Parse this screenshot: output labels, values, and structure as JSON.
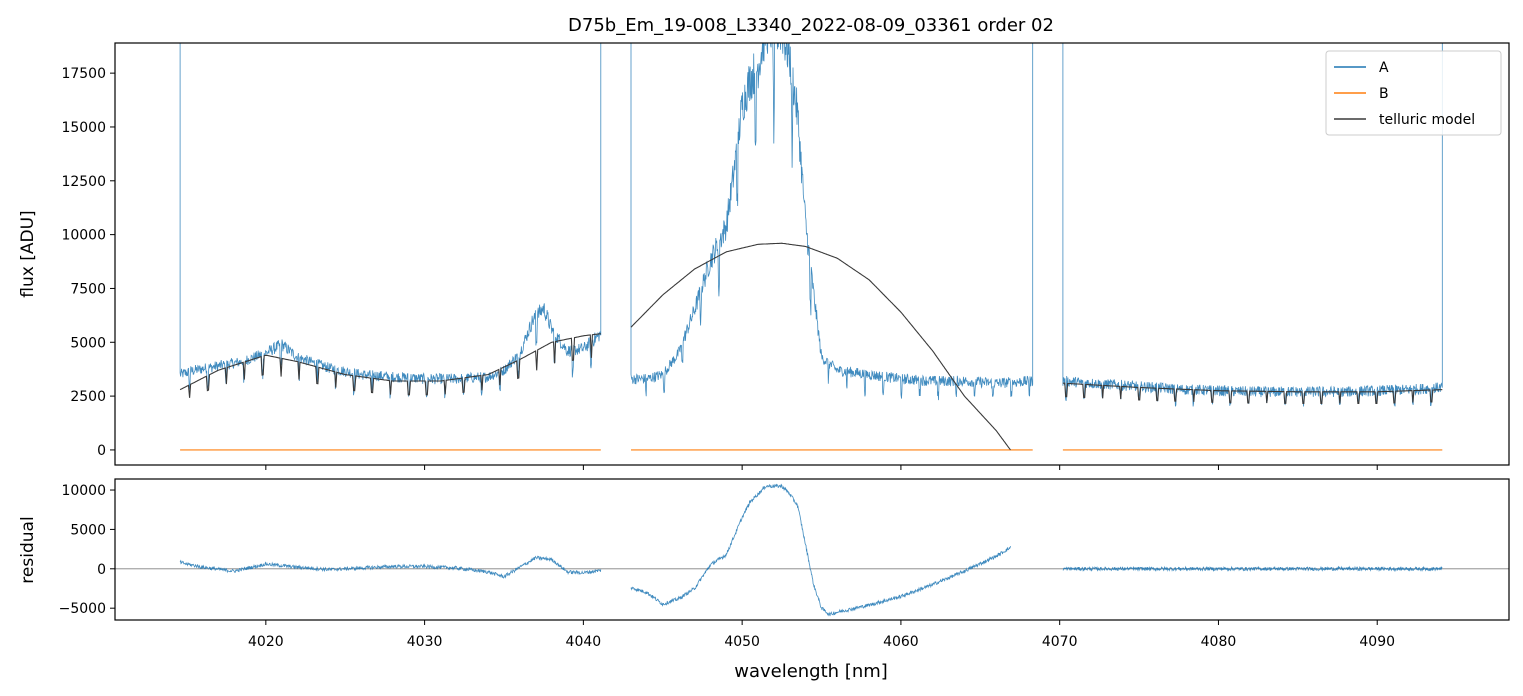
{
  "title": "D75b_Em_19-008_L3340_2022-08-09_03361  order 02",
  "colors": {
    "A": "#1f77b4",
    "B": "#ff7f0e",
    "model": "#3a3a3a",
    "zero_line": "#808080"
  },
  "chart_data": [
    {
      "panel": "flux",
      "type": "line",
      "ylabel": "flux [ADU]",
      "xlim": [
        4010.5,
        4098.3
      ],
      "ylim": [
        -700,
        18900
      ],
      "xticks": [
        4020,
        4030,
        4040,
        4050,
        4060,
        4070,
        4080,
        4090
      ],
      "xticklabels_shown": false,
      "yticks": [
        0,
        2500,
        5000,
        7500,
        10000,
        12500,
        15000,
        17500
      ],
      "ytick_labels": [
        "0",
        "2500",
        "5000",
        "7500",
        "10000",
        "12500",
        "15000",
        "17500"
      ],
      "legend": {
        "position": "top-right",
        "entries": [
          "A",
          "B",
          "telluric model"
        ]
      },
      "series": [
        {
          "name": "A",
          "segments": [
            {
              "x": [
                4014.6,
                4015.5,
                4017,
                4018.5,
                4020,
                4021,
                4022,
                4024,
                4026,
                4028,
                4030,
                4032,
                4034,
                4035,
                4036,
                4036.8,
                4037.5,
                4038,
                4039,
                4040,
                4041.1
              ],
              "y": [
                3500,
                3700,
                3900,
                4100,
                4500,
                4900,
                4300,
                3800,
                3500,
                3400,
                3300,
                3300,
                3400,
                3700,
                4500,
                6000,
                6600,
                5600,
                4600,
                4700,
                5400
              ]
            },
            {
              "x": [
                4043,
                4044,
                4045,
                4046,
                4047,
                4048,
                4048.5,
                4049,
                4049.5,
                4050,
                4050.5,
                4051,
                4051.5,
                4052,
                4052.5,
                4053,
                4053.5,
                4054,
                4054.5,
                4055,
                4056,
                4058,
                4060,
                4062,
                4064,
                4066,
                4068.3
              ],
              "y": [
                3300,
                3300,
                3500,
                4500,
                6500,
                8800,
                9600,
                10400,
                13000,
                16000,
                17200,
                17800,
                19500,
                19500,
                19500,
                18200,
                15500,
                10500,
                7300,
                4300,
                3700,
                3500,
                3300,
                3200,
                3200,
                3100,
                3200
              ]
            },
            {
              "x": [
                4070.2,
                4072,
                4074,
                4076,
                4078,
                4080,
                4082,
                4084,
                4086,
                4088,
                4090,
                4092,
                4094.1
              ],
              "y": [
                3200,
                3100,
                3000,
                2900,
                2800,
                2750,
                2700,
                2700,
                2700,
                2700,
                2750,
                2800,
                2900
              ]
            }
          ]
        },
        {
          "name": "B",
          "segments": [
            {
              "x": [
                4014.6,
                4041.1
              ],
              "y": [
                0,
                0
              ]
            },
            {
              "x": [
                4043,
                4068.3
              ],
              "y": [
                0,
                0
              ]
            },
            {
              "x": [
                4070.2,
                4094.1
              ],
              "y": [
                0,
                0
              ]
            }
          ]
        },
        {
          "name": "telluric model",
          "segments": [
            {
              "x": [
                4014.6,
                4017,
                4020,
                4022,
                4025,
                4028,
                4031,
                4034,
                4036,
                4038,
                4040,
                4041.1
              ],
              "y": [
                2800,
                3700,
                4400,
                4100,
                3500,
                3200,
                3200,
                3500,
                4200,
                5000,
                5300,
                5400
              ]
            },
            {
              "x": [
                4043,
                4045,
                4047,
                4049,
                4051,
                4052.5,
                4054,
                4056,
                4058,
                4060,
                4062,
                4064,
                4066,
                4066.9
              ],
              "y": [
                5700,
                7200,
                8400,
                9200,
                9550,
                9600,
                9450,
                8900,
                7900,
                6400,
                4600,
                2500,
                900,
                0
              ]
            },
            {
              "x": [
                4070.2,
                4075,
                4080,
                4085,
                4090,
                4094.1
              ],
              "y": [
                3100,
                2900,
                2750,
                2700,
                2700,
                2800
              ]
            }
          ]
        }
      ]
    },
    {
      "panel": "residual",
      "type": "line",
      "xlabel": "wavelength [nm]",
      "ylabel": "residual",
      "xlim": [
        4010.5,
        4098.3
      ],
      "ylim": [
        -6500,
        11400
      ],
      "xticks": [
        4020,
        4030,
        4040,
        4050,
        4060,
        4070,
        4080,
        4090
      ],
      "xtick_labels": [
        "4020",
        "4030",
        "4040",
        "4050",
        "4060",
        "4070",
        "4080",
        "4090"
      ],
      "yticks": [
        -5000,
        0,
        5000,
        10000
      ],
      "ytick_labels": [
        "−5000",
        "0",
        "5000",
        "10000"
      ],
      "hline": 0,
      "series": [
        {
          "name": "A",
          "segments": [
            {
              "x": [
                4014.6,
                4016,
                4018,
                4020,
                4022,
                4024,
                4026,
                4028,
                4030,
                4032,
                4034,
                4035,
                4036,
                4037,
                4038,
                4039,
                4040,
                4041.1
              ],
              "y": [
                800,
                200,
                -300,
                600,
                200,
                -100,
                100,
                300,
                300,
                100,
                -400,
                -1000,
                200,
                1400,
                1200,
                -400,
                -500,
                -200
              ]
            },
            {
              "x": [
                4043,
                4044,
                4045,
                4046,
                4047,
                4048,
                4049,
                4050,
                4050.5,
                4051,
                4051.5,
                4052,
                4052.5,
                4053,
                4053.5,
                4054,
                4054.5,
                4055,
                4055.5,
                4056,
                4058,
                4060,
                4062,
                4064,
                4066,
                4066.9
              ],
              "y": [
                -2400,
                -3000,
                -4500,
                -3800,
                -2500,
                500,
                1800,
                6500,
                8500,
                9500,
                10500,
                10500,
                10500,
                9500,
                8000,
                3000,
                -2000,
                -5000,
                -5800,
                -5500,
                -4600,
                -3500,
                -2000,
                -300,
                1600,
                2700
              ]
            },
            {
              "x": [
                4070.2,
                4075,
                4080,
                4085,
                4090,
                4094.1
              ],
              "y": [
                0,
                0,
                0,
                0,
                0,
                0
              ]
            }
          ]
        }
      ]
    }
  ]
}
